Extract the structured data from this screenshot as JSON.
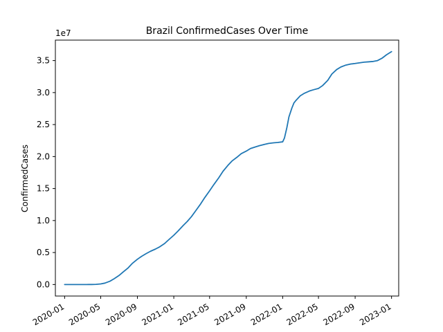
{
  "chart_data": {
    "type": "line",
    "title": "Brazil  ConfirmedCases Over Time",
    "xlabel": "",
    "ylabel": "ConfirmedCases",
    "y_offset_label": "1e7",
    "y_scale": 10000000,
    "xlim": [
      "2019-12-01",
      "2023-01-25"
    ],
    "ylim": [
      -1800000,
      38200000
    ],
    "grid": false,
    "legend": "none",
    "line_color": "#1f77b4",
    "x_ticks": [
      {
        "value": "2020-01-01",
        "label": "2020-01"
      },
      {
        "value": "2020-05-01",
        "label": "2020-05"
      },
      {
        "value": "2020-09-01",
        "label": "2020-09"
      },
      {
        "value": "2021-01-01",
        "label": "2021-01"
      },
      {
        "value": "2021-05-01",
        "label": "2021-05"
      },
      {
        "value": "2021-09-01",
        "label": "2021-09"
      },
      {
        "value": "2022-01-01",
        "label": "2022-01"
      },
      {
        "value": "2022-05-01",
        "label": "2022-05"
      },
      {
        "value": "2022-09-01",
        "label": "2022-09"
      },
      {
        "value": "2023-01-01",
        "label": "2023-01"
      }
    ],
    "y_ticks": [
      {
        "value": 0,
        "label": "0.0"
      },
      {
        "value": 5000000,
        "label": "0.5"
      },
      {
        "value": 10000000,
        "label": "1.0"
      },
      {
        "value": 15000000,
        "label": "1.5"
      },
      {
        "value": 20000000,
        "label": "2.0"
      },
      {
        "value": 25000000,
        "label": "2.5"
      },
      {
        "value": 30000000,
        "label": "3.0"
      },
      {
        "value": 35000000,
        "label": "3.5"
      }
    ],
    "series": [
      {
        "x": [
          "2020-01-01",
          "2020-02-26",
          "2020-03-15",
          "2020-04-01",
          "2020-04-15",
          "2020-05-01",
          "2020-05-15",
          "2020-06-01",
          "2020-06-15",
          "2020-07-01",
          "2020-07-15",
          "2020-08-01",
          "2020-08-15",
          "2020-09-01",
          "2020-09-15",
          "2020-10-01",
          "2020-10-15",
          "2020-11-01",
          "2020-11-15",
          "2020-12-01",
          "2020-12-15",
          "2021-01-01",
          "2021-01-15",
          "2021-02-01",
          "2021-02-15",
          "2021-03-01",
          "2021-03-15",
          "2021-04-01",
          "2021-04-15",
          "2021-05-01",
          "2021-05-15",
          "2021-06-01",
          "2021-06-15",
          "2021-07-01",
          "2021-07-15",
          "2021-08-01",
          "2021-08-15",
          "2021-09-01",
          "2021-09-15",
          "2021-10-01",
          "2021-10-15",
          "2021-11-01",
          "2021-11-15",
          "2021-12-01",
          "2021-12-15",
          "2022-01-01",
          "2022-01-07",
          "2022-01-15",
          "2022-01-22",
          "2022-02-01",
          "2022-02-08",
          "2022-02-15",
          "2022-03-01",
          "2022-03-15",
          "2022-04-01",
          "2022-04-15",
          "2022-05-01",
          "2022-05-15",
          "2022-06-01",
          "2022-06-15",
          "2022-07-01",
          "2022-07-15",
          "2022-08-01",
          "2022-08-15",
          "2022-09-01",
          "2022-09-15",
          "2022-10-01",
          "2022-10-15",
          "2022-11-01",
          "2022-11-15",
          "2022-12-01",
          "2022-12-15",
          "2023-01-01"
        ],
        "values": [
          0,
          0,
          1000,
          6000,
          25000,
          90000,
          220000,
          520000,
          900000,
          1400000,
          1950000,
          2600000,
          3300000,
          3950000,
          4400000,
          4850000,
          5200000,
          5550000,
          5900000,
          6400000,
          7000000,
          7700000,
          8350000,
          9200000,
          9850000,
          10600000,
          11500000,
          12600000,
          13600000,
          14650000,
          15600000,
          16700000,
          17700000,
          18600000,
          19300000,
          19900000,
          20450000,
          20850000,
          21250000,
          21500000,
          21700000,
          21900000,
          22050000,
          22150000,
          22200000,
          22300000,
          22900000,
          24500000,
          26200000,
          27600000,
          28400000,
          28800000,
          29500000,
          29900000,
          30250000,
          30450000,
          30650000,
          31100000,
          31900000,
          32900000,
          33600000,
          34000000,
          34300000,
          34450000,
          34550000,
          34650000,
          34750000,
          34800000,
          34870000,
          35000000,
          35400000,
          35900000,
          36400000
        ]
      }
    ]
  }
}
